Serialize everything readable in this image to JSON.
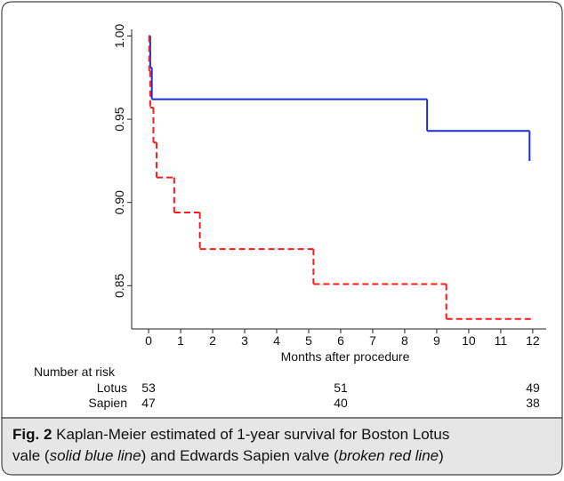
{
  "chart_data": {
    "type": "step",
    "xlabel": "Months after procedure",
    "xlim": [
      -0.53,
      12.42
    ],
    "xticks": [
      0,
      1,
      2,
      3,
      4,
      5,
      6,
      7,
      8,
      9,
      10,
      11,
      12
    ],
    "ylim": [
      0.824,
      1.004
    ],
    "yticks": [
      {
        "value": 0.85,
        "label": "0.85"
      },
      {
        "value": 0.9,
        "label": "0.90"
      },
      {
        "value": 0.95,
        "label": "0.95"
      },
      {
        "value": 1,
        "label": "1.00"
      }
    ],
    "series": [
      {
        "color": "#1c2cd6",
        "dash": false,
        "x": [
          0,
          0.05,
          0.1,
          8.7,
          11.9
        ],
        "values": [
          1.0,
          0.981,
          0.962,
          0.943,
          0.925
        ]
      },
      {
        "color": "#ff1a1a",
        "dash": true,
        "x": [
          0,
          0.02,
          0.05,
          0.15,
          0.25,
          0.8,
          1.6,
          5.15,
          9.3,
          12
        ],
        "values": [
          1.0,
          0.979,
          0.957,
          0.936,
          0.915,
          0.894,
          0.872,
          0.851,
          0.83,
          0.83
        ]
      }
    ],
    "risk_table": {
      "title": "Number at risk",
      "rows": [
        {
          "name": "Lotus",
          "values": [
            "53",
            "51",
            "49"
          ]
        },
        {
          "name": "Sapien",
          "values": [
            "47",
            "40",
            "38"
          ]
        }
      ]
    }
  },
  "caption": {
    "label": "Fig. 2",
    "parts": [
      {
        "text": " Kaplan-Meier estimated of 1-year survival for Boston Lotus",
        "italic": false
      },
      {
        "text": "vale (",
        "italic": false,
        "newline": true
      },
      {
        "text": "solid blue line",
        "italic": true
      },
      {
        "text": ") and Edwards Sapien valve (",
        "italic": false
      },
      {
        "text": "broken red line",
        "italic": true
      },
      {
        "text": ")",
        "italic": false
      }
    ]
  }
}
